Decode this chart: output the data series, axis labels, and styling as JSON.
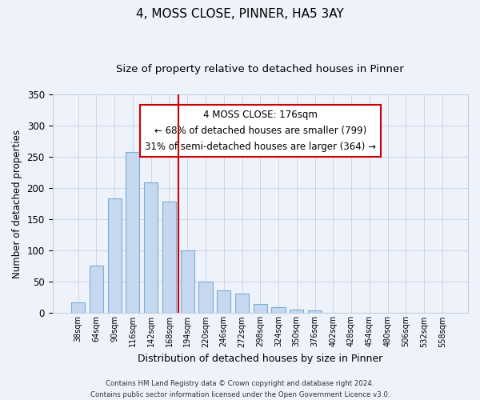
{
  "title": "4, MOSS CLOSE, PINNER, HA5 3AY",
  "subtitle": "Size of property relative to detached houses in Pinner",
  "xlabel": "Distribution of detached houses by size in Pinner",
  "ylabel": "Number of detached properties",
  "bin_labels": [
    "38sqm",
    "64sqm",
    "90sqm",
    "116sqm",
    "142sqm",
    "168sqm",
    "194sqm",
    "220sqm",
    "246sqm",
    "272sqm",
    "298sqm",
    "324sqm",
    "350sqm",
    "376sqm",
    "402sqm",
    "428sqm",
    "454sqm",
    "480sqm",
    "506sqm",
    "532sqm",
    "558sqm"
  ],
  "bar_values": [
    17,
    76,
    183,
    257,
    209,
    178,
    100,
    50,
    36,
    31,
    14,
    10,
    5,
    4,
    1,
    1,
    0,
    0,
    1,
    0,
    1
  ],
  "bar_color": "#c5d8f0",
  "bar_edge_color": "#7aadd4",
  "vline_x": 6,
  "vline_color": "#cc0000",
  "ylim": [
    0,
    350
  ],
  "annotation_text": "4 MOSS CLOSE: 176sqm\n← 68% of detached houses are smaller (799)\n31% of semi-detached houses are larger (364) →",
  "annotation_box_color": "#ffffff",
  "annotation_box_edgecolor": "#cc0000",
  "footer1": "Contains HM Land Registry data © Crown copyright and database right 2024.",
  "footer2": "Contains public sector information licensed under the Open Government Licence v3.0.",
  "background_color": "#eef2fa",
  "plot_bg_color": "#eef2fa",
  "title_fontsize": 11,
  "subtitle_fontsize": 9.5,
  "xlabel_fontsize": 9,
  "ylabel_fontsize": 8.5
}
